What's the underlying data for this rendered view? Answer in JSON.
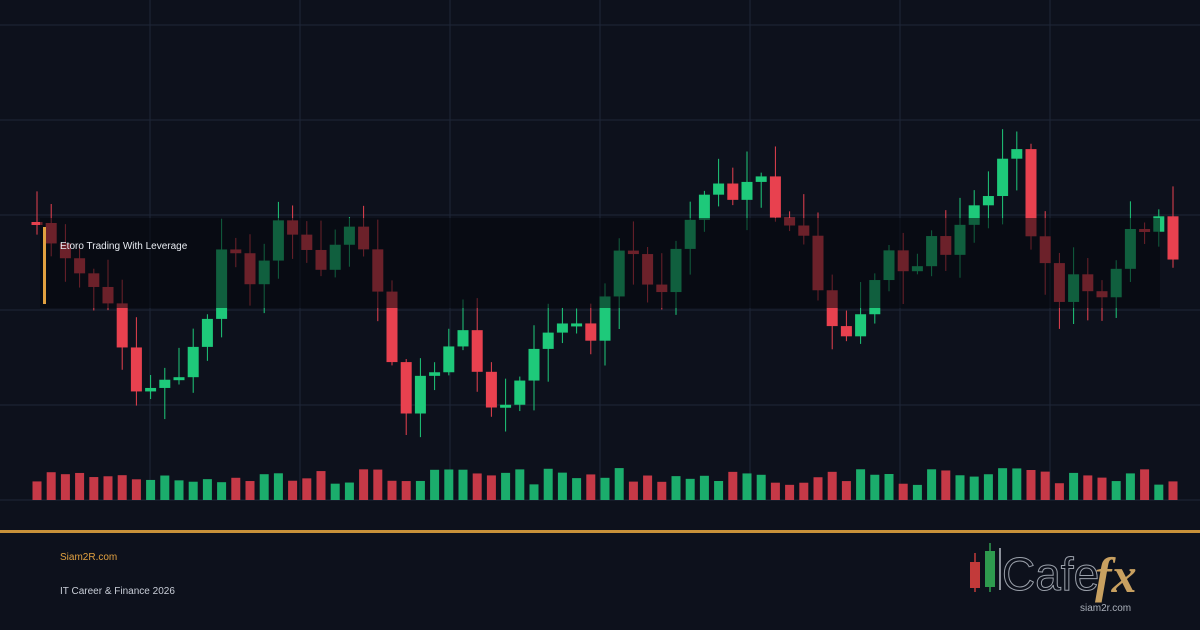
{
  "label": "Etoro Trading With Leverage",
  "footer": {
    "site": "Siam2R.com",
    "tagline": "IT Career & Finance 2026"
  },
  "logo": {
    "name_a": "Cafe",
    "name_b": "fx",
    "url": "siam2r.com"
  }
}
